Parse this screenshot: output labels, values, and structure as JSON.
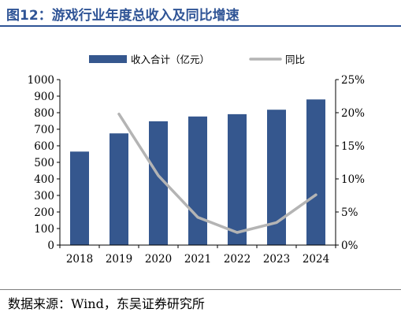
{
  "title": "图12：游戏行业年度总收入及同比增速",
  "source": "数据来源：Wind，东吴证券研究所",
  "chart_data": {
    "type": "bar",
    "categories": [
      "2018",
      "2019",
      "2020",
      "2021",
      "2022",
      "2023",
      "2024"
    ],
    "series": [
      {
        "name": "收入合计（亿元）",
        "type": "bar",
        "axis": "left",
        "color": "#35578e",
        "values": [
          565,
          675,
          748,
          777,
          791,
          818,
          880
        ]
      },
      {
        "name": "同比",
        "type": "line",
        "axis": "right",
        "color": "#b4b4b4",
        "values": [
          null,
          19.8,
          10.5,
          4.2,
          1.9,
          3.4,
          7.6
        ]
      }
    ],
    "y_left": {
      "ylim": [
        0,
        1000
      ],
      "ticks": [
        "0",
        "100",
        "200",
        "300",
        "400",
        "500",
        "600",
        "700",
        "800",
        "900",
        "1000"
      ]
    },
    "y_right": {
      "ylim": [
        0,
        25
      ],
      "ticks": [
        "0%",
        "5%",
        "10%",
        "15%",
        "20%",
        "25%"
      ]
    },
    "legend_position": "top",
    "grid": false
  }
}
